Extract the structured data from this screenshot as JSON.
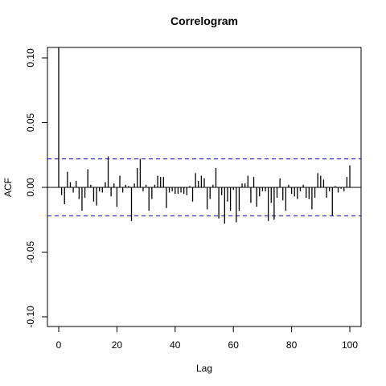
{
  "chart_data": {
    "type": "bar",
    "title": "Correlogram",
    "xlabel": "Lag",
    "ylabel": "ACF",
    "xlim": [
      0,
      100
    ],
    "ylim": [
      -0.1,
      0.1
    ],
    "x_ticks": [
      "0",
      "20",
      "40",
      "60",
      "80",
      "100"
    ],
    "y_ticks": [
      "-0.10",
      "-0.05",
      "0.00",
      "0.05",
      "0.10"
    ],
    "confidence_band": 0.022,
    "colors": {
      "bars": "#000000",
      "band": "#0000cd",
      "zero_line": "#000000"
    },
    "lags": [
      0,
      1,
      2,
      3,
      4,
      5,
      6,
      7,
      8,
      9,
      10,
      11,
      12,
      13,
      14,
      15,
      16,
      17,
      18,
      19,
      20,
      21,
      22,
      23,
      24,
      25,
      26,
      27,
      28,
      29,
      30,
      31,
      32,
      33,
      34,
      35,
      36,
      37,
      38,
      39,
      40,
      41,
      42,
      43,
      44,
      45,
      46,
      47,
      48,
      49,
      50,
      51,
      52,
      53,
      54,
      55,
      56,
      57,
      58,
      59,
      60,
      61,
      62,
      63,
      64,
      65,
      66,
      67,
      68,
      69,
      70,
      71,
      72,
      73,
      74,
      75,
      76,
      77,
      78,
      79,
      80,
      81,
      82,
      83,
      84,
      85,
      86,
      87,
      88,
      89,
      90,
      91,
      92,
      93,
      94,
      95,
      96,
      97,
      98,
      99,
      100
    ],
    "values": [
      0.108,
      -0.006,
      -0.013,
      0.012,
      0.004,
      -0.004,
      0.005,
      -0.009,
      -0.018,
      -0.008,
      0.014,
      0.002,
      -0.011,
      -0.014,
      -0.003,
      -0.004,
      0.004,
      0.024,
      -0.007,
      0.003,
      -0.015,
      0.009,
      -0.004,
      0.002,
      0.001,
      -0.026,
      0.003,
      0.015,
      0.022,
      -0.003,
      0.002,
      -0.018,
      -0.009,
      0.002,
      0.009,
      0.008,
      0.008,
      -0.016,
      -0.004,
      -0.003,
      -0.005,
      -0.005,
      -0.004,
      -0.005,
      -0.006,
      0.001,
      -0.011,
      0.011,
      0.005,
      0.009,
      0.007,
      -0.017,
      -0.009,
      0.002,
      0.015,
      -0.024,
      -0.006,
      -0.028,
      -0.011,
      -0.018,
      -0.002,
      -0.027,
      -0.018,
      0.003,
      0.003,
      0.009,
      -0.012,
      0.008,
      -0.015,
      -0.007,
      -0.003,
      -0.003,
      -0.026,
      -0.012,
      -0.025,
      -0.008,
      0.007,
      -0.01,
      -0.018,
      0.002,
      -0.005,
      -0.007,
      -0.009,
      -0.003,
      0.002,
      -0.008,
      -0.009,
      -0.017,
      -0.008,
      0.011,
      0.009,
      0.006,
      -0.008,
      -0.003,
      -0.022,
      0.001,
      -0.004,
      -0.001,
      -0.003,
      0.008,
      0.017
    ]
  }
}
